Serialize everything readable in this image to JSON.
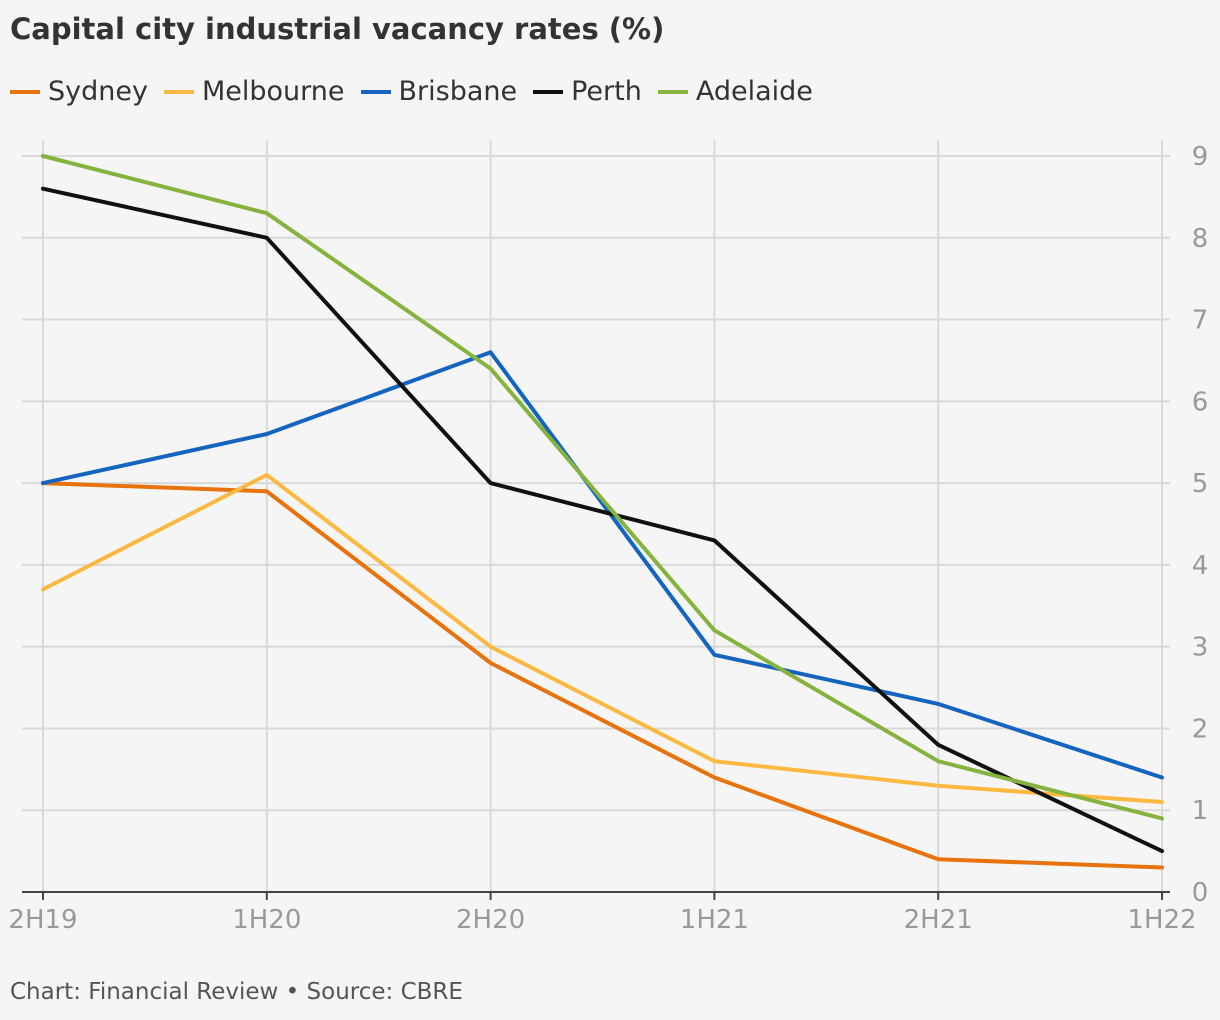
{
  "chart_data": {
    "type": "line",
    "title": "Capital city industrial vacancy rates (%)",
    "categories": [
      "2H19",
      "1H20",
      "2H20",
      "1H21",
      "2H21",
      "1H22"
    ],
    "series": [
      {
        "name": "Sydney",
        "color": "#e8720c",
        "values": [
          5.0,
          4.9,
          2.8,
          1.4,
          0.4,
          0.3
        ]
      },
      {
        "name": "Melbourne",
        "color": "#fbb941",
        "values": [
          3.7,
          5.1,
          3.0,
          1.6,
          1.3,
          1.1
        ]
      },
      {
        "name": "Brisbane",
        "color": "#1565c0",
        "values": [
          5.0,
          5.6,
          6.6,
          2.9,
          2.3,
          1.4
        ]
      },
      {
        "name": "Perth",
        "color": "#111111",
        "values": [
          8.6,
          8.0,
          5.0,
          4.3,
          1.8,
          0.5
        ]
      },
      {
        "name": "Adelaide",
        "color": "#86b33d",
        "values": [
          9.0,
          8.3,
          6.4,
          3.2,
          1.6,
          0.9
        ]
      }
    ],
    "ylim": [
      0,
      9
    ],
    "yticks": [
      0,
      1,
      2,
      3,
      4,
      5,
      6,
      7,
      8,
      9
    ],
    "y_axis_position": "right",
    "grid": true,
    "legend_position": "top-left"
  },
  "footer": {
    "credit": "Chart: Financial Review • Source: CBRE"
  }
}
